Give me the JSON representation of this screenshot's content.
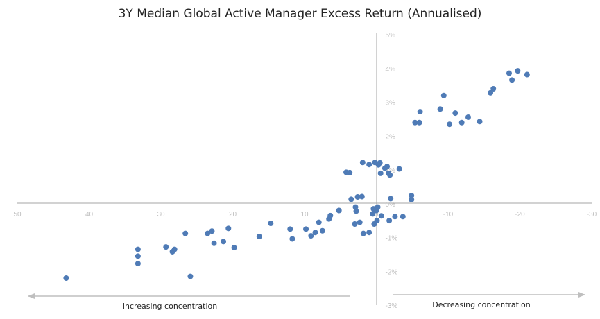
{
  "chart_data": {
    "type": "scatter",
    "title": "3Y Median Global Active Manager Excess Return (Annualised)",
    "xlabel": "",
    "ylabel": "",
    "xlim": [
      50,
      -30
    ],
    "ylim": [
      -3,
      5
    ],
    "x_ticks": [
      "50",
      "40",
      "30",
      "20",
      "10",
      "0",
      "-10",
      "-20",
      "-30"
    ],
    "y_ticks": [
      "5%",
      "4%",
      "3%",
      "2%",
      "1%",
      "0%",
      "-1%",
      "-2%",
      "-3%"
    ],
    "grid": false,
    "colors": {
      "point": "#4f7bb6",
      "axis": "#a6a6a6",
      "arrow": "#bfbfbf"
    },
    "annotations": {
      "left": "Increasing concentration",
      "right": "Decreasing concentration"
    },
    "points": [
      [
        43.2,
        -2.2
      ],
      [
        33.2,
        -1.35
      ],
      [
        33.2,
        -1.55
      ],
      [
        33.2,
        -1.77
      ],
      [
        29.3,
        -1.28
      ],
      [
        28.4,
        -1.42
      ],
      [
        28.1,
        -1.35
      ],
      [
        26.6,
        -0.88
      ],
      [
        25.9,
        -2.15
      ],
      [
        23.5,
        -0.88
      ],
      [
        22.9,
        -0.81
      ],
      [
        22.6,
        -1.17
      ],
      [
        21.3,
        -1.12
      ],
      [
        20.6,
        -0.73
      ],
      [
        19.8,
        -1.3
      ],
      [
        16.3,
        -0.97
      ],
      [
        14.7,
        -0.58
      ],
      [
        12.0,
        -0.75
      ],
      [
        11.7,
        -1.04
      ],
      [
        9.8,
        -0.75
      ],
      [
        9.1,
        -0.95
      ],
      [
        8.5,
        -0.85
      ],
      [
        8.0,
        -0.55
      ],
      [
        7.5,
        -0.8
      ],
      [
        6.6,
        -0.45
      ],
      [
        6.4,
        -0.35
      ],
      [
        5.2,
        -0.2
      ],
      [
        4.2,
        0.93
      ],
      [
        3.7,
        0.92
      ],
      [
        3.5,
        0.13
      ],
      [
        3.0,
        -0.6
      ],
      [
        2.9,
        -0.1
      ],
      [
        2.8,
        -0.22
      ],
      [
        2.6,
        0.2
      ],
      [
        2.3,
        -0.55
      ],
      [
        2.0,
        0.21
      ],
      [
        1.9,
        1.22
      ],
      [
        1.8,
        -0.88
      ],
      [
        1.0,
        -0.85
      ],
      [
        1.0,
        1.16
      ],
      [
        0.5,
        -0.3
      ],
      [
        0.4,
        -0.15
      ],
      [
        0.3,
        -0.6
      ],
      [
        0.2,
        1.22
      ],
      [
        0.0,
        -0.2
      ],
      [
        -0.1,
        -0.5
      ],
      [
        -0.2,
        -0.1
      ],
      [
        -0.3,
        1.15
      ],
      [
        -0.5,
        1.21
      ],
      [
        -0.6,
        0.9
      ],
      [
        -0.7,
        -0.36
      ],
      [
        -1.2,
        1.05
      ],
      [
        -1.5,
        1.1
      ],
      [
        -1.7,
        0.9
      ],
      [
        -1.8,
        -0.5
      ],
      [
        -1.9,
        0.85
      ],
      [
        -2.0,
        0.15
      ],
      [
        -2.6,
        -0.38
      ],
      [
        -3.2,
        1.03
      ],
      [
        -3.7,
        -0.38
      ],
      [
        -4.9,
        0.24
      ],
      [
        -4.9,
        0.12
      ],
      [
        -5.4,
        2.4
      ],
      [
        -6.0,
        2.4
      ],
      [
        -6.1,
        2.72
      ],
      [
        -8.9,
        2.8
      ],
      [
        -9.4,
        3.2
      ],
      [
        -10.2,
        2.35
      ],
      [
        -11.0,
        2.68
      ],
      [
        -11.9,
        2.4
      ],
      [
        -12.8,
        2.56
      ],
      [
        -14.4,
        2.43
      ],
      [
        -15.9,
        3.28
      ],
      [
        -16.3,
        3.4
      ],
      [
        -18.5,
        3.86
      ],
      [
        -18.9,
        3.66
      ],
      [
        -19.7,
        3.93
      ],
      [
        -21.0,
        3.82
      ]
    ]
  }
}
